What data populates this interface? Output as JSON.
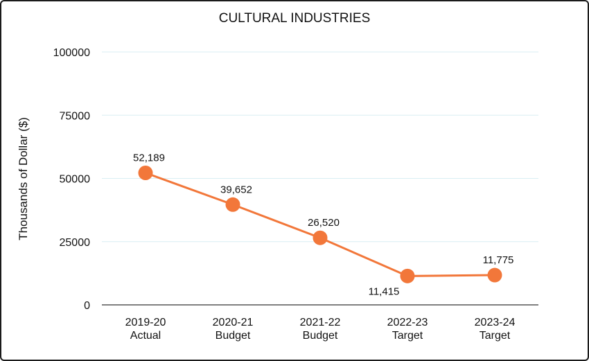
{
  "chart_data": {
    "type": "line",
    "title": "CULTURAL INDUSTRIES",
    "xlabel": "",
    "ylabel": "Thousands of Dollar ($)",
    "ylim": [
      0,
      100000
    ],
    "yticks": [
      0,
      25000,
      50000,
      75000,
      100000
    ],
    "ytick_labels": [
      "0",
      "25000",
      "50000",
      "75000",
      "100000"
    ],
    "categories": [
      [
        "2019-20",
        "Actual"
      ],
      [
        "2020-21",
        "Budget"
      ],
      [
        "2021-22",
        "Budget"
      ],
      [
        "2022-23",
        "Target"
      ],
      [
        "2023-24",
        "Target"
      ]
    ],
    "series": [
      {
        "values": [
          52189,
          39652,
          26520,
          11415,
          11775
        ],
        "labels": [
          "52,189",
          "39,652",
          "26,520",
          "11,415",
          "11,775"
        ]
      }
    ],
    "grid": true,
    "legend": "none",
    "colors": {
      "line": "#F2773A",
      "marker": "#F2773A",
      "grid": "#D9EEF3",
      "axis": "#333333"
    }
  }
}
